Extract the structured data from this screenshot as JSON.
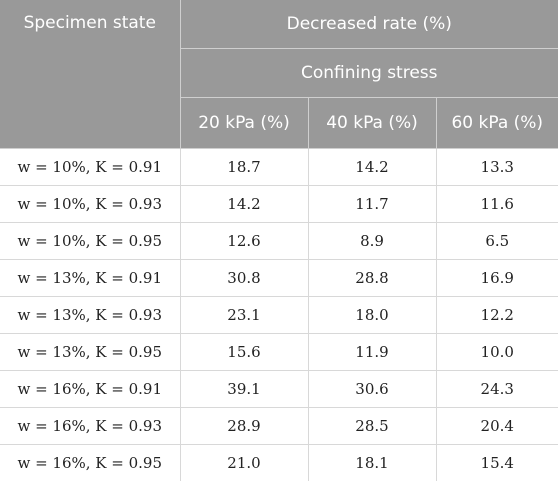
{
  "header": {
    "specimen_state": "Specimen state",
    "decreased_rate": "Decreased rate (%)",
    "confining_stress": "Confining stress",
    "columns": [
      "20 kPa (%)",
      "40 kPa (%)",
      "60 kPa (%)"
    ]
  },
  "rows": [
    {
      "state": "w = 10%, K = 0.91",
      "values": [
        "18.7",
        "14.2",
        "13.3"
      ]
    },
    {
      "state": "w = 10%, K = 0.93",
      "values": [
        "14.2",
        "11.7",
        "11.6"
      ]
    },
    {
      "state": "w = 10%, K = 0.95",
      "values": [
        "12.6",
        "8.9",
        "6.5"
      ]
    },
    {
      "state": "w = 13%, K = 0.91",
      "values": [
        "30.8",
        "28.8",
        "16.9"
      ]
    },
    {
      "state": "w = 13%, K = 0.93",
      "values": [
        "23.1",
        "18.0",
        "12.2"
      ]
    },
    {
      "state": "w = 13%, K = 0.95",
      "values": [
        "15.6",
        "11.9",
        "10.0"
      ]
    },
    {
      "state": "w = 16%, K = 0.91",
      "values": [
        "39.1",
        "30.6",
        "24.3"
      ]
    },
    {
      "state": "w = 16%, K = 0.93",
      "values": [
        "28.9",
        "28.5",
        "20.4"
      ]
    },
    {
      "state": "w = 16%, K = 0.95",
      "values": [
        "21.0",
        "18.1",
        "15.4"
      ]
    }
  ],
  "colors": {
    "header_bg": "#999999",
    "header_text": "#ffffff",
    "grid_line": "#d8d8d8"
  }
}
